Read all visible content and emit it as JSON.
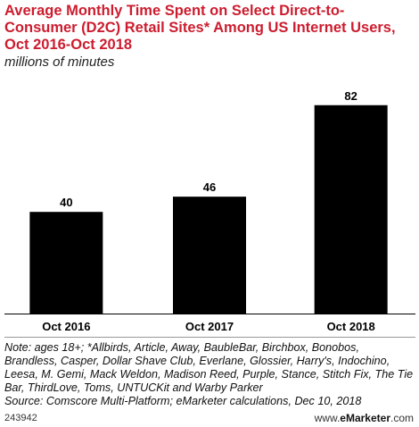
{
  "title": "Average Monthly Time Spent on Select Direct-to-Consumer (D2C) Retail Sites* Among US Internet Users, Oct 2016-Oct 2018",
  "subtitle": "millions of minutes",
  "chart_data": {
    "type": "bar",
    "categories": [
      "Oct 2016",
      "Oct 2017",
      "Oct 2018"
    ],
    "values": [
      40,
      46,
      82
    ],
    "data_labels": [
      "40",
      "46",
      "82"
    ],
    "ylim": [
      0,
      90
    ],
    "grid": false,
    "bar_color": "#000000",
    "title_color": "#cc1d2f"
  },
  "note": "Note: ages 18+; *Allbirds, Article, Away, BaubleBar, Birchbox, Bonobos, Brandless, Casper, Dollar Shave Club, Everlane, Glossier, Harry's, Indochino, Leesa, M. Gemi, Mack Weldon, Madison Reed, Purple, Stance, Stitch Fix, The Tie Bar, ThirdLove, Toms, UNTUCKit and Warby Parker",
  "source": "Source: Comscore Multi-Platform; eMarketer calculations, Dec 10, 2018",
  "footer": {
    "chart_id": "243942",
    "brand_prefix": "www.",
    "brand_name": "eMarketer",
    "brand_suffix": ".com"
  }
}
